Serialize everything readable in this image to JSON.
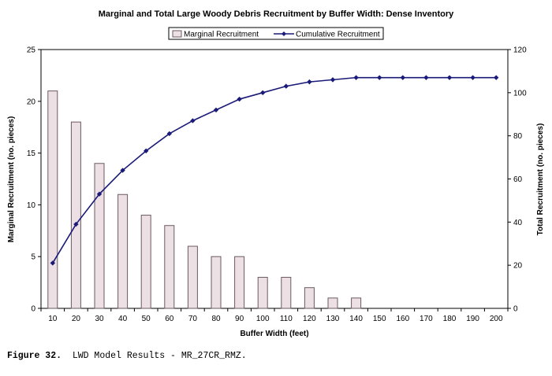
{
  "chart_data": {
    "type": "bar+line",
    "title": "Marginal and Total Large Woody Debris Recruitment by Buffer Width:  Dense Inventory",
    "xlabel": "Buffer Width (feet)",
    "ylabel_left": "Marginal Recruitment (no. pieces)",
    "ylabel_right": "Total Recruitment (no. pieces)",
    "categories": [
      "10",
      "20",
      "30",
      "40",
      "50",
      "60",
      "70",
      "80",
      "90",
      "100",
      "110",
      "120",
      "130",
      "140",
      "150",
      "160",
      "170",
      "180",
      "190",
      "200"
    ],
    "series": [
      {
        "name": "Marginal Recruitment",
        "kind": "bar",
        "axis": "left",
        "values": [
          21,
          18,
          14,
          11,
          9,
          8,
          6,
          5,
          5,
          3,
          3,
          2,
          1,
          1,
          0,
          0,
          0,
          0,
          0,
          0
        ]
      },
      {
        "name": "Cumulative Recruitment",
        "kind": "line",
        "axis": "right",
        "values": [
          21,
          39,
          53,
          64,
          73,
          81,
          87,
          92,
          97,
          100,
          103,
          105,
          106,
          107,
          107,
          107,
          107,
          107,
          107,
          107
        ]
      }
    ],
    "y_left": {
      "min": 0,
      "max": 25,
      "ticks": [
        "0",
        "5",
        "10",
        "15",
        "20",
        "25"
      ]
    },
    "y_right": {
      "min": 0,
      "max": 120,
      "ticks": [
        "0",
        "20",
        "40",
        "60",
        "80",
        "100",
        "120"
      ]
    },
    "legend_position": "top-center",
    "grid": false,
    "colors": {
      "bar_fill": "#ede0e4",
      "bar_stroke": "#6b5a60",
      "line": "#1a1a78",
      "plot_bg": "#ffffff"
    }
  },
  "caption": {
    "label": "Figure 32.",
    "text": "LWD Model Results - MR_27CR_RMZ."
  }
}
